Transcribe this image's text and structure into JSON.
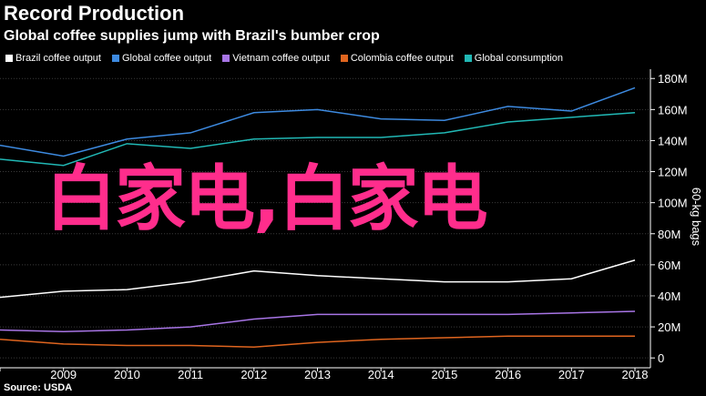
{
  "header": {
    "title": "Record Production",
    "subtitle": "Global coffee supplies jump with Brazil's bumber crop"
  },
  "overlay_text": "白家电,白家电",
  "source": "Source: USDA",
  "chart_data": {
    "type": "line",
    "x": [
      2008,
      2009,
      2010,
      2011,
      2012,
      2013,
      2014,
      2015,
      2016,
      2017,
      2018
    ],
    "x_tick_labels": [
      "2009",
      "2010",
      "2011",
      "2012",
      "2013",
      "2014",
      "2015",
      "2016",
      "2017",
      "2018"
    ],
    "ylabel": "60-kg bags",
    "y_ticks": [
      0,
      20,
      40,
      60,
      80,
      100,
      120,
      140,
      160,
      180
    ],
    "y_tick_labels": [
      "0",
      "20M",
      "40M",
      "60M",
      "80M",
      "100M",
      "120M",
      "140M",
      "160M",
      "180M"
    ],
    "ylim": [
      -4,
      186
    ],
    "xlim": [
      2008,
      2018
    ],
    "grid": true,
    "legend_position": "top-left",
    "series": [
      {
        "name": "Brazil coffee output",
        "color": "#ffffff",
        "values": [
          39,
          43,
          44,
          49,
          56,
          53,
          51,
          49,
          49,
          51,
          63
        ]
      },
      {
        "name": "Global coffee output",
        "color": "#3d8ae0",
        "values": [
          137,
          130,
          141,
          145,
          158,
          160,
          154,
          153,
          162,
          159,
          174
        ]
      },
      {
        "name": "Vietnam coffee output",
        "color": "#a875e6",
        "values": [
          18,
          17,
          18,
          20,
          25,
          28,
          28,
          28,
          28,
          29,
          30
        ]
      },
      {
        "name": "Colombia coffee output",
        "color": "#e0651f",
        "values": [
          12,
          9,
          8,
          8,
          7,
          10,
          12,
          13,
          14,
          14,
          14
        ]
      },
      {
        "name": "Global consumption",
        "color": "#21b8b5",
        "values": [
          128,
          124,
          138,
          135,
          141,
          142,
          142,
          145,
          152,
          155,
          158
        ]
      }
    ]
  }
}
